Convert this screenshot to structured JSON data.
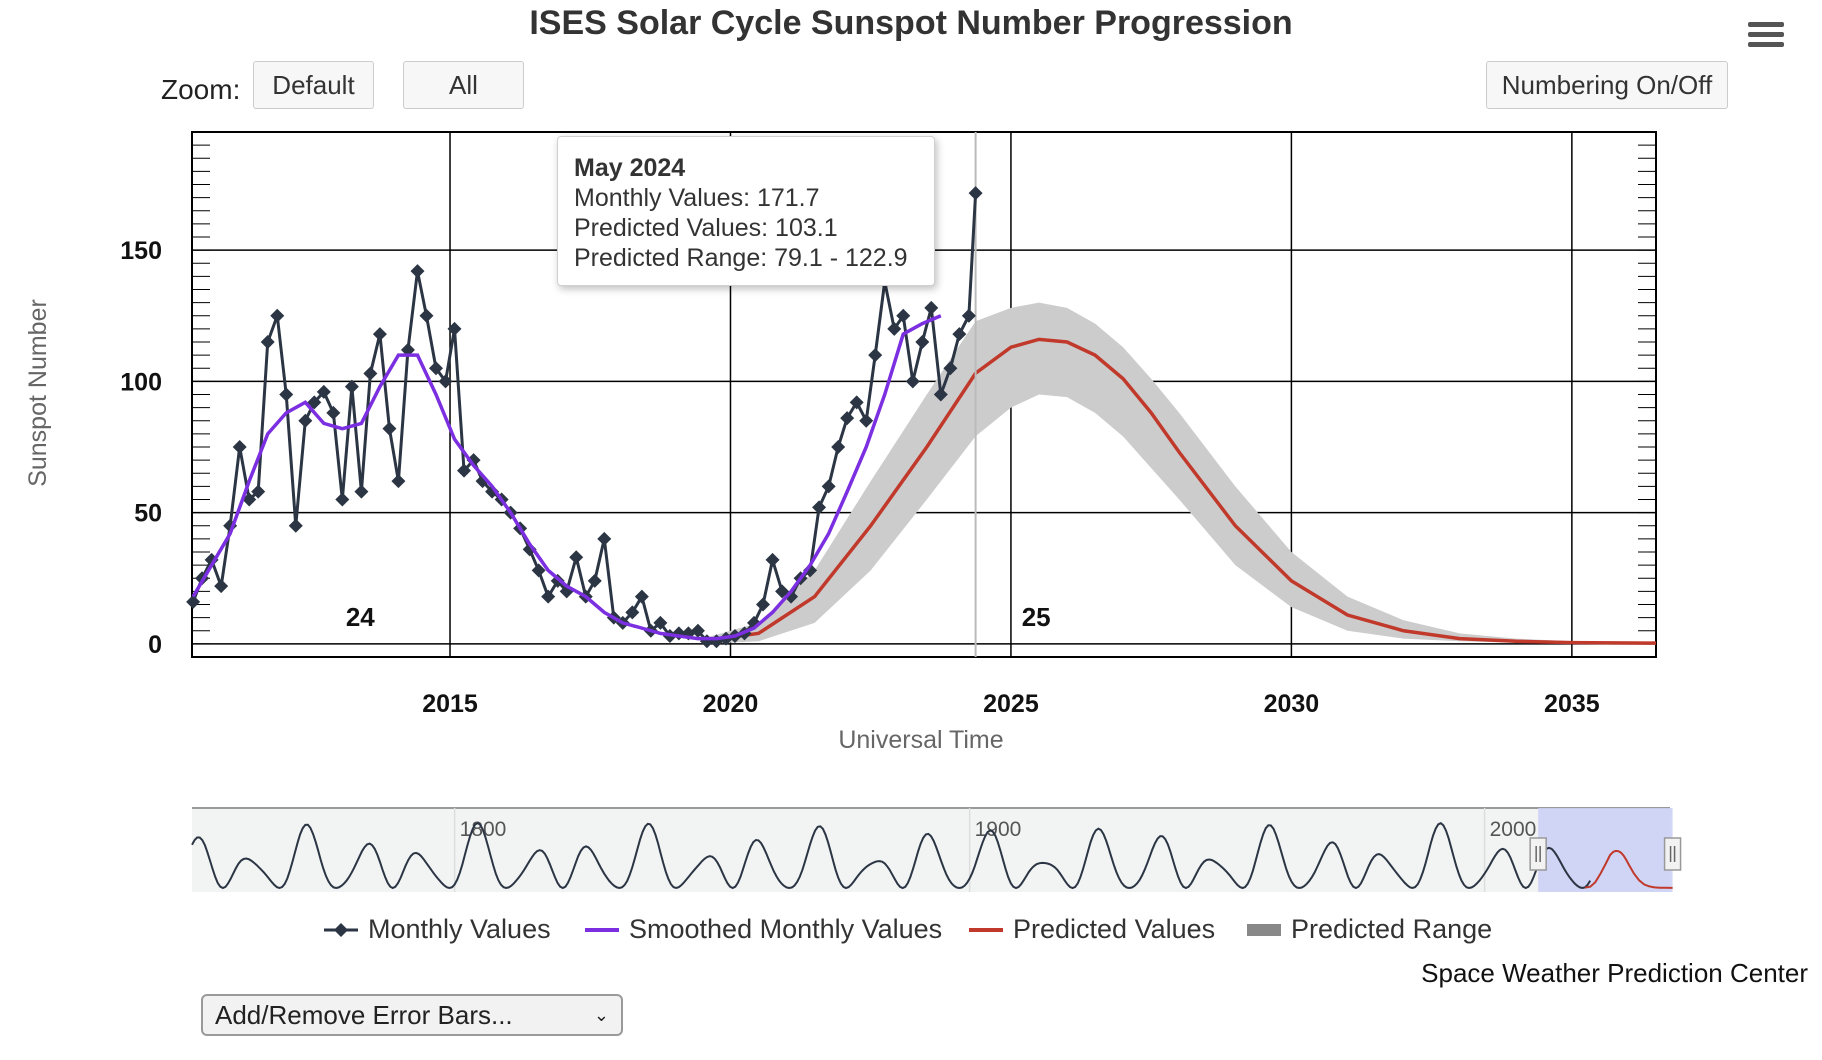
{
  "header": {
    "title": "ISES Solar Cycle Sunspot Number Progression"
  },
  "toolbar": {
    "zoom_label": "Zoom:",
    "zoom_default": "Default",
    "zoom_all": "All",
    "numbering_toggle": "Numbering On/Off"
  },
  "tooltip": {
    "title": "May 2024",
    "line1": "Monthly Values: 171.7",
    "line2": "Predicted Values: 103.1",
    "line3": "Predicted Range: 79.1 - 122.9"
  },
  "legend": {
    "monthly": "Monthly Values",
    "smoothed": "Smoothed Monthly Values",
    "predicted": "Predicted Values",
    "range": "Predicted Range"
  },
  "footer": {
    "credit": "Space Weather Prediction Center",
    "error_bars_select": "Add/Remove Error Bars..."
  },
  "colors": {
    "monthly": "#2b3544",
    "smoothed": "#7b2fe0",
    "predicted": "#c0392b",
    "range": "#cccccc",
    "navigator_mask": "#ccd2f5"
  },
  "chart_data": {
    "type": "line",
    "xlabel": "Universal Time",
    "ylabel": "Sunspot Number",
    "xlim": [
      2010.4,
      2036.5
    ],
    "ylim": [
      -5,
      195
    ],
    "x_ticks": [
      2015,
      2020,
      2025,
      2030,
      2035
    ],
    "y_ticks": [
      0,
      50,
      100,
      150
    ],
    "cycle_labels": [
      {
        "text": "24",
        "x": 2013.4,
        "y": 3
      },
      {
        "text": "25",
        "x": 2025.45,
        "y": 3
      }
    ],
    "crosshair_x": 2024.37,
    "series": [
      {
        "name": "Monthly Values",
        "x": [
          2010.42,
          2010.58,
          2010.75,
          2010.92,
          2011.08,
          2011.25,
          2011.42,
          2011.58,
          2011.75,
          2011.92,
          2012.08,
          2012.25,
          2012.42,
          2012.58,
          2012.75,
          2012.92,
          2013.08,
          2013.25,
          2013.42,
          2013.58,
          2013.75,
          2013.92,
          2014.08,
          2014.25,
          2014.42,
          2014.58,
          2014.75,
          2014.92,
          2015.08,
          2015.25,
          2015.42,
          2015.58,
          2015.75,
          2015.92,
          2016.08,
          2016.25,
          2016.42,
          2016.58,
          2016.75,
          2016.92,
          2017.08,
          2017.25,
          2017.42,
          2017.58,
          2017.75,
          2017.92,
          2018.08,
          2018.25,
          2018.42,
          2018.58,
          2018.75,
          2018.92,
          2019.08,
          2019.25,
          2019.42,
          2019.58,
          2019.75,
          2019.92,
          2020.08,
          2020.25,
          2020.42,
          2020.58,
          2020.75,
          2020.92,
          2021.08,
          2021.25,
          2021.42,
          2021.58,
          2021.75,
          2021.92,
          2022.08,
          2022.25,
          2022.42,
          2022.58,
          2022.75,
          2022.92,
          2023.08,
          2023.25,
          2023.42,
          2023.58,
          2023.75,
          2023.92,
          2024.08,
          2024.25,
          2024.37
        ],
        "values": [
          16,
          25,
          32,
          22,
          45,
          75,
          55,
          58,
          115,
          125,
          95,
          45,
          85,
          92,
          96,
          88,
          55,
          98,
          58,
          103,
          118,
          82,
          62,
          112,
          142,
          125,
          105,
          100,
          120,
          66,
          70,
          62,
          58,
          55,
          50,
          44,
          36,
          28,
          18,
          24,
          20,
          33,
          18,
          24,
          40,
          10,
          8,
          12,
          18,
          5,
          8,
          3,
          4,
          4,
          5,
          1,
          1,
          2,
          3,
          4,
          8,
          15,
          32,
          20,
          18,
          25,
          28,
          52,
          60,
          75,
          86,
          92,
          85,
          110,
          138,
          120,
          125,
          100,
          115,
          128,
          95,
          105,
          118,
          125,
          171.7
        ]
      },
      {
        "name": "Smoothed Monthly Values",
        "x": [
          2010.42,
          2010.75,
          2011.08,
          2011.42,
          2011.75,
          2012.08,
          2012.42,
          2012.75,
          2013.08,
          2013.42,
          2013.75,
          2014.08,
          2014.42,
          2014.75,
          2015.08,
          2015.42,
          2015.75,
          2016.08,
          2016.42,
          2016.75,
          2017.08,
          2017.42,
          2017.75,
          2018.08,
          2018.42,
          2018.75,
          2019.08,
          2019.42,
          2019.75,
          2020.08,
          2020.42,
          2020.75,
          2021.08,
          2021.42,
          2021.75,
          2022.08,
          2022.42,
          2022.75,
          2023.08,
          2023.42,
          2023.75
        ],
        "values": [
          18,
          30,
          42,
          62,
          80,
          88,
          92,
          84,
          82,
          84,
          98,
          110,
          110,
          95,
          78,
          68,
          60,
          50,
          38,
          28,
          22,
          18,
          12,
          8,
          6,
          4,
          3,
          2,
          2,
          3,
          6,
          12,
          20,
          30,
          42,
          58,
          75,
          95,
          118,
          122,
          125
        ]
      },
      {
        "name": "Predicted Values",
        "x": [
          2019.5,
          2020.5,
          2021.5,
          2022.5,
          2023.5,
          2024.37,
          2025.0,
          2025.5,
          2026.0,
          2026.5,
          2027.0,
          2027.5,
          2028.0,
          2029.0,
          2030.0,
          2031.0,
          2032.0,
          2033.0,
          2034.0,
          2035.0,
          2036.5
        ],
        "values": [
          1,
          4,
          18,
          45,
          75,
          103.1,
          113,
          116,
          115,
          110,
          101,
          88,
          73,
          45,
          24,
          11,
          5,
          2,
          1,
          0.5,
          0.3
        ]
      },
      {
        "name": "Predicted Range",
        "x": [
          2019.5,
          2020.5,
          2021.5,
          2022.5,
          2023.5,
          2024.37,
          2025.0,
          2025.5,
          2026.0,
          2026.5,
          2027.0,
          2027.5,
          2028.0,
          2029.0,
          2030.0,
          2031.0,
          2032.0,
          2033.0,
          2034.0,
          2035.0,
          2036.5
        ],
        "low": [
          0,
          1,
          8,
          28,
          55,
          79.1,
          90,
          95,
          94,
          88,
          79,
          67,
          55,
          30,
          14,
          5,
          2,
          1,
          0.5,
          0.2,
          0.1
        ],
        "high": [
          2,
          8,
          28,
          62,
          95,
          122.9,
          128,
          130,
          128,
          122,
          113,
          101,
          88,
          60,
          35,
          18,
          9,
          4,
          2,
          1,
          0.6
        ]
      }
    ],
    "navigator": {
      "x_ticks": [
        1800,
        1900,
        2000
      ],
      "xlim": [
        1749,
        2036
      ],
      "selection": [
        2010.4,
        2036.5
      ]
    }
  }
}
